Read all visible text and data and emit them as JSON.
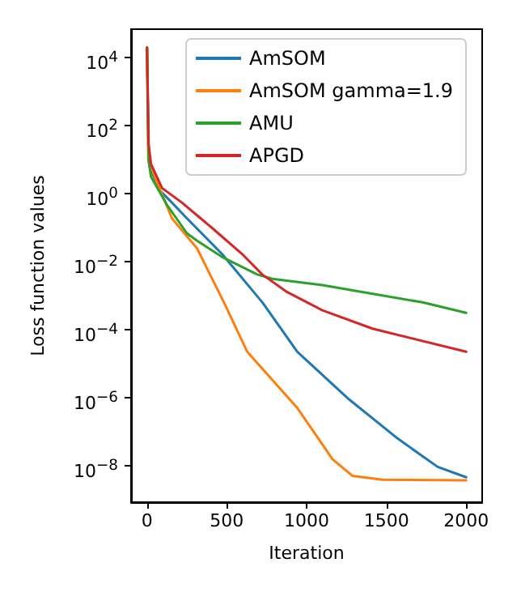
{
  "chart_data": {
    "type": "line",
    "xlabel": "Iteration",
    "ylabel": "Loss function values",
    "log": "y",
    "xlim": [
      -100,
      2100
    ],
    "xticks": [
      0,
      500,
      1000,
      1500,
      2000
    ],
    "ylim": [
      8.7e-10,
      70000.0
    ],
    "yticks": [
      {
        "value": 1e-08,
        "label": "10$^{−8}$"
      },
      {
        "value": 1e-06,
        "label": "10$^{−6}$"
      },
      {
        "value": 0.0001,
        "label": "10$^{−4}$"
      },
      {
        "value": 0.01,
        "label": "10$^{−2}$"
      },
      {
        "value": 1,
        "label": "10$^{0}$"
      },
      {
        "value": 100,
        "label": "10$^{2}$"
      },
      {
        "value": 10000,
        "label": "10$^{4}$"
      }
    ],
    "grid": false,
    "legend": "top right",
    "series": [
      {
        "name": "AmSOM",
        "color": "#1f77b4",
        "x": [
          0,
          10,
          16,
          79,
          157,
          251,
          471,
          725,
          942,
          1256,
          1570,
          1821,
          2000
        ],
        "values": [
          20000.0,
          10,
          6.3,
          1.3,
          0.55,
          0.19,
          0.017,
          0.00063,
          2.3e-05,
          1e-06,
          6.5e-08,
          9.5e-09,
          4.7e-09
        ]
      },
      {
        "name": "AmSOM gamma=1.9",
        "color": "#ff7f0e",
        "x": [
          0,
          8,
          63,
          157,
          314,
          487,
          628,
          942,
          1162,
          1287,
          1475,
          2000
        ],
        "values": [
          20000.0,
          10,
          2.2,
          0.19,
          0.025,
          0.00058,
          2.3e-05,
          5.1e-07,
          1.6e-08,
          5.2e-09,
          4e-09,
          3.8e-09
        ]
      },
      {
        "name": "AMU",
        "color": "#2ca02c",
        "x": [
          0,
          10,
          25,
          126,
          251,
          314,
          471,
          691,
          785,
          1099,
          1726,
          2000
        ],
        "values": [
          20000.0,
          10,
          3.2,
          0.47,
          0.069,
          0.042,
          0.014,
          0.0043,
          0.0032,
          0.0021,
          0.00065,
          0.00032
        ]
      },
      {
        "name": "APGD",
        "color": "#d62728",
        "x": [
          0,
          10,
          25,
          94,
          220,
          408,
          597,
          722,
          879,
          1099,
          1413,
          2000
        ],
        "values": [
          20000.0,
          30,
          7.6,
          1.5,
          0.55,
          0.1,
          0.017,
          0.0043,
          0.0013,
          0.00038,
          0.00011,
          2.3e-05
        ]
      }
    ]
  }
}
